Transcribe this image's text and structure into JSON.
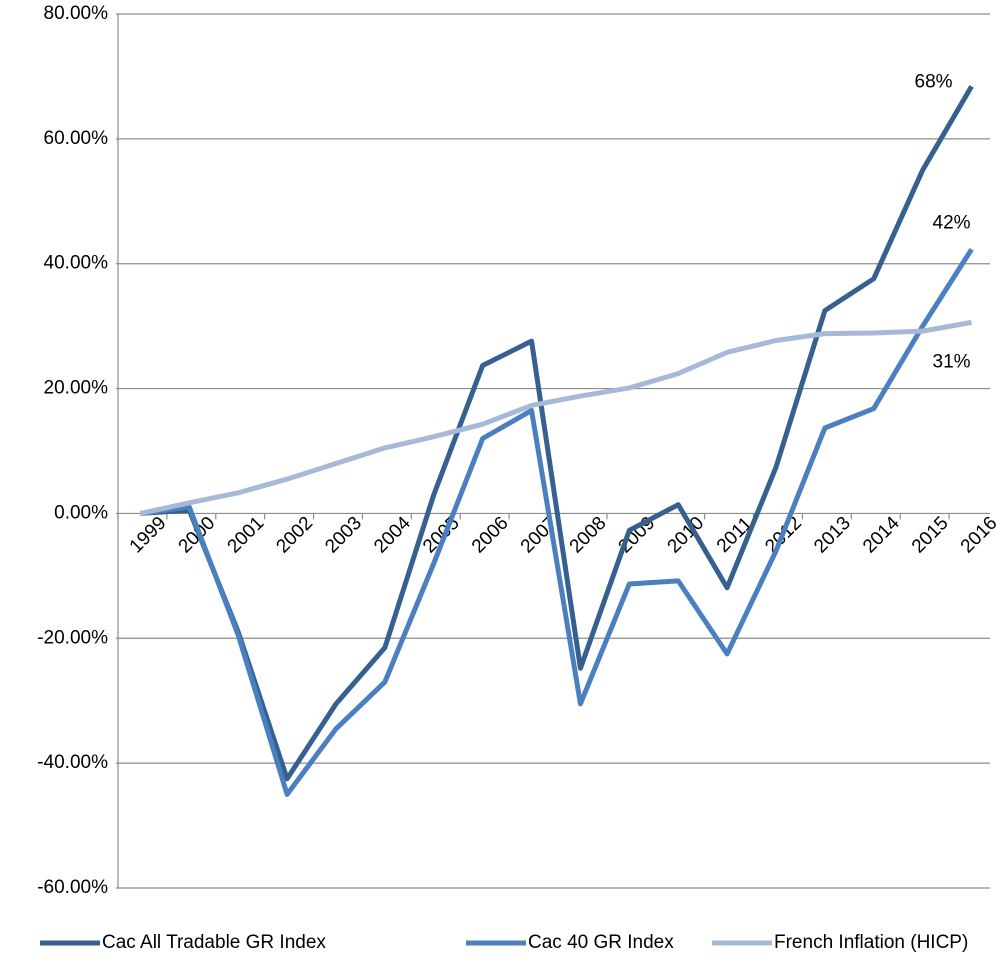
{
  "chart_data": {
    "type": "line",
    "categories": [
      "1999",
      "2000",
      "2001",
      "2002",
      "2003",
      "2004",
      "2005",
      "2006",
      "2007",
      "2008",
      "2009",
      "2010",
      "2011",
      "2012",
      "2013",
      "2014",
      "2015",
      "2016"
    ],
    "series": [
      {
        "name": "Cac All Tradable GR Index",
        "color": "#35608f",
        "values": [
          0,
          0.5,
          -19,
          -42.5,
          -30.5,
          -21.5,
          3,
          23.7,
          27.6,
          -24.8,
          -2.7,
          1.4,
          -11.9,
          7.4,
          32.5,
          37.6,
          55,
          68.4
        ],
        "value_labels": [
          null,
          null,
          null,
          null,
          null,
          null,
          null,
          null,
          null,
          null,
          null,
          null,
          null,
          null,
          null,
          null,
          null,
          "68%"
        ]
      },
      {
        "name": "Cac 40 GR Index",
        "color": "#4a80c0",
        "values": [
          0,
          1,
          -19.5,
          -45,
          -34.5,
          -27,
          -8,
          12,
          16.5,
          -30.5,
          -11.3,
          -10.8,
          -22.5,
          -6,
          13.7,
          16.8,
          30,
          42.3
        ],
        "value_labels": [
          null,
          null,
          null,
          null,
          null,
          null,
          null,
          null,
          null,
          null,
          null,
          null,
          null,
          null,
          null,
          null,
          null,
          "42%"
        ]
      },
      {
        "name": "French Inflation (HICP)",
        "color": "#a6b9d9",
        "values": [
          0,
          1.7,
          3.3,
          5.5,
          8,
          10.5,
          12.3,
          14.3,
          17.3,
          18.8,
          20.1,
          22.4,
          25.8,
          27.7,
          28.8,
          28.9,
          29.2,
          30.6
        ],
        "value_labels": [
          null,
          null,
          null,
          null,
          null,
          null,
          null,
          null,
          null,
          null,
          null,
          null,
          null,
          null,
          null,
          null,
          null,
          "31%"
        ]
      }
    ],
    "ylim": [
      -60,
      80
    ],
    "yticks": [
      {
        "value": -60,
        "label": "-60.00%"
      },
      {
        "value": -40,
        "label": "-40.00%"
      },
      {
        "value": -20,
        "label": "-20.00%"
      },
      {
        "value": 0,
        "label": "0.00%"
      },
      {
        "value": 20,
        "label": "20.00%"
      },
      {
        "value": 40,
        "label": "40.00%"
      },
      {
        "value": 60,
        "label": "60.00%"
      },
      {
        "value": 80,
        "label": "80.00%"
      }
    ],
    "grid": true,
    "legend": "bottom"
  }
}
